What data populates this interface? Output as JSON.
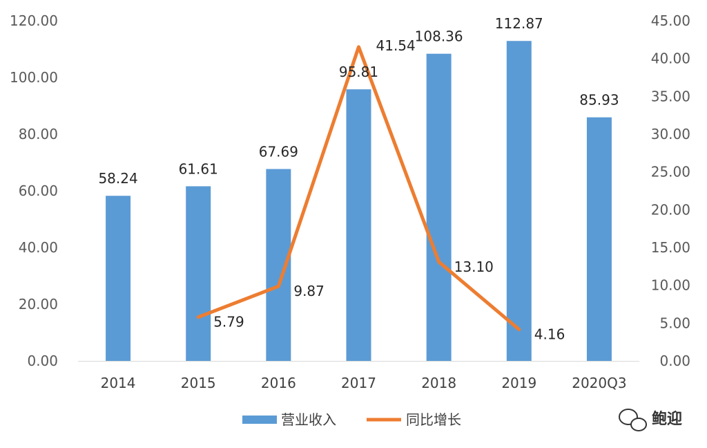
{
  "chart_data": {
    "type": "bar",
    "categories": [
      "2014",
      "2015",
      "2016",
      "2017",
      "2018",
      "2019",
      "2020Q3"
    ],
    "series": [
      {
        "name": "营业收入",
        "type": "bar",
        "axis": "left",
        "color": "#5B9BD5",
        "values": [
          58.24,
          61.61,
          67.69,
          95.81,
          108.36,
          112.87,
          85.93
        ],
        "labels": [
          "58.24",
          "61.61",
          "67.69",
          "95.81",
          "108.36",
          "112.87",
          "85.93"
        ]
      },
      {
        "name": "同比增长",
        "type": "line",
        "axis": "right",
        "color": "#ED7D31",
        "values": [
          null,
          5.79,
          9.87,
          41.54,
          13.1,
          4.16,
          null
        ],
        "labels": [
          "",
          "5.79",
          "9.87",
          "41.54",
          "13.10",
          "4.16",
          ""
        ]
      }
    ],
    "ylim": [
      0,
      120
    ],
    "y2lim": [
      0,
      45
    ],
    "yticks": [
      "0.00",
      "20.00",
      "40.00",
      "60.00",
      "80.00",
      "100.00",
      "120.00"
    ],
    "y2ticks": [
      "0.00",
      "5.00",
      "10.00",
      "15.00",
      "20.00",
      "25.00",
      "30.00",
      "35.00",
      "40.00",
      "45.00"
    ],
    "grid": false,
    "legend": "bottom"
  },
  "watermark": {
    "text": "鲍迎",
    "icon": "wechat-icon"
  }
}
